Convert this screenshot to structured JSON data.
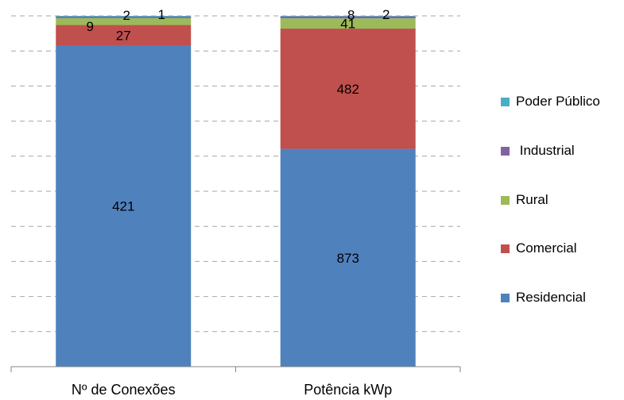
{
  "chart_data": {
    "type": "bar",
    "stacked": true,
    "percent_stacked": true,
    "categories": [
      "Nº de Conexões",
      "Potência kWp"
    ],
    "series": [
      {
        "name": "Residencial",
        "values": [
          421,
          873
        ],
        "color": "#4F81BD"
      },
      {
        "name": "Comercial",
        "values": [
          27,
          482
        ],
        "color": "#C0504D"
      },
      {
        "name": "Rural",
        "values": [
          9,
          41
        ],
        "color": "#9BBB59"
      },
      {
        "name": "Industrial",
        "values": [
          2,
          8
        ],
        "color": "#8064A2"
      },
      {
        "name": "Poder Público",
        "values": [
          1,
          2
        ],
        "color": "#4BACC6"
      }
    ],
    "legend_order": [
      "Poder Público",
      " Industrial",
      "Rural",
      "Comercial",
      "Residencial"
    ],
    "legend_position": "right",
    "grid": true,
    "grid_style": "dashed",
    "y_axis_visible": false
  }
}
